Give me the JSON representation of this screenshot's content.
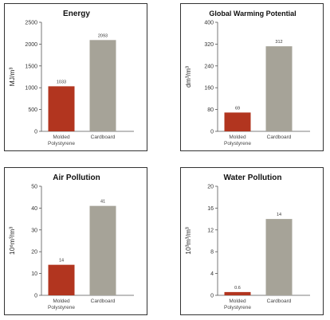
{
  "chart_data": [
    {
      "type": "bar",
      "title": "Energy",
      "ylabel": "MJ/m³",
      "categories": [
        "Molded Polystyrene",
        "Cardboard"
      ],
      "category_lines": [
        [
          "Molded",
          "Polystyrene"
        ],
        [
          "Cardboard"
        ]
      ],
      "values": [
        1033,
        2093
      ],
      "value_labels": [
        "1033",
        "2093"
      ],
      "ylim": [
        0,
        2500
      ],
      "yticks": [
        0,
        500,
        1000,
        1500,
        2000,
        2500
      ],
      "colors": [
        "#b2351f",
        "#a6a398"
      ]
    },
    {
      "type": "bar",
      "title": "Global Warming Potential",
      "ylabel": "dm³/m³",
      "categories": [
        "Molded Polystyrene",
        "Cardboard"
      ],
      "category_lines": [
        [
          "Molded",
          "Polystyrene"
        ],
        [
          "Cardboard"
        ]
      ],
      "values": [
        69,
        312
      ],
      "value_labels": [
        "69",
        "312"
      ],
      "ylim": [
        0,
        400
      ],
      "yticks": [
        0,
        80,
        160,
        240,
        320,
        400
      ],
      "colors": [
        "#b2351f",
        "#a6a398"
      ]
    },
    {
      "type": "bar",
      "title": "Air Pollution",
      "ylabel": "10⁶m³/m³",
      "categories": [
        "Molded Polystyrene",
        "Cardboard"
      ],
      "category_lines": [
        [
          "Molded",
          "Polystyrene"
        ],
        [
          "Cardboard"
        ]
      ],
      "values": [
        14,
        41
      ],
      "value_labels": [
        "14",
        "41"
      ],
      "ylim": [
        0,
        50
      ],
      "yticks": [
        0,
        10,
        20,
        30,
        40,
        50
      ],
      "colors": [
        "#b2351f",
        "#a6a398"
      ]
    },
    {
      "type": "bar",
      "title": "Water Pollution",
      "ylabel": "10³m³/m³",
      "categories": [
        "Molded Polystyrene",
        "Cardboard"
      ],
      "category_lines": [
        [
          "Molded",
          "Polystyrene"
        ],
        [
          "Cardboard"
        ]
      ],
      "values": [
        0.6,
        14
      ],
      "value_labels": [
        "0.6",
        "14"
      ],
      "ylim": [
        0,
        20
      ],
      "yticks": [
        0,
        4,
        8,
        12,
        16,
        20
      ],
      "colors": [
        "#b2351f",
        "#a6a398"
      ]
    }
  ]
}
